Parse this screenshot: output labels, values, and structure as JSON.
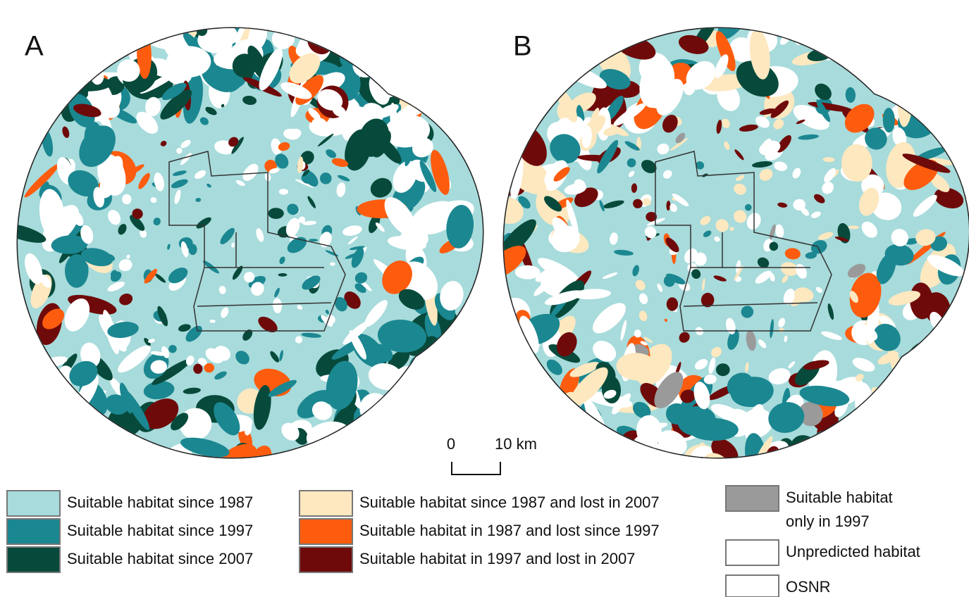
{
  "panels": [
    {
      "label": "A"
    },
    {
      "label": "B"
    }
  ],
  "scale_bar": {
    "start": "0",
    "end": "10 km"
  },
  "legend": [
    {
      "label": "Suitable habitat since 1987",
      "color": "#a8dbdb"
    },
    {
      "label": "Suitable habitat since 1997",
      "color": "#1b8791"
    },
    {
      "label": "Suitable habitat since 2007",
      "color": "#074a3b"
    },
    {
      "label": "Suitable habitat since 1987 and lost in 2007",
      "color": "#fde8c0"
    },
    {
      "label": "Suitable habitat in 1987 and lost since 1997",
      "color": "#fd5c0e"
    },
    {
      "label": "Suitable habitat in 1997 and lost in 2007",
      "color": "#6f0a0a"
    },
    {
      "lines": [
        "Suitable habitat",
        "only in 1997"
      ],
      "color": "#9a9a9a"
    },
    {
      "label": "Unpredicted habitat",
      "color": "#ffffff"
    },
    {
      "label": "OSNR",
      "color": "#ffffff"
    }
  ]
}
